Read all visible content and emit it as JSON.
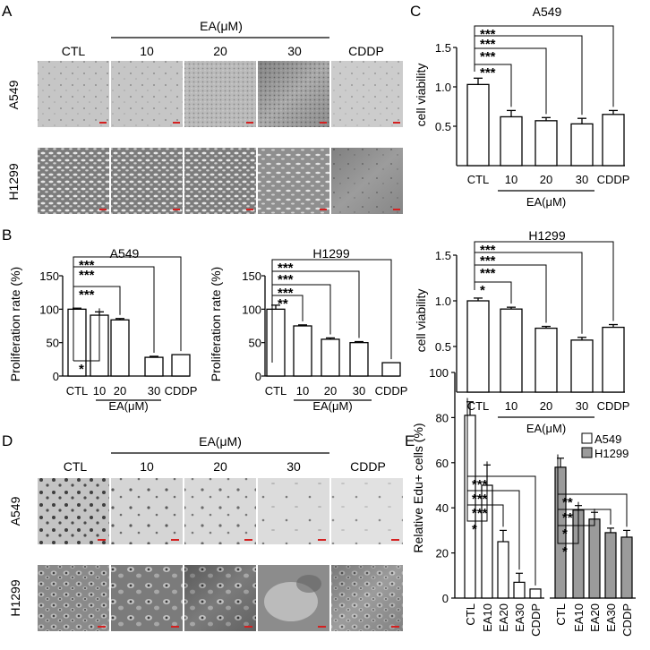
{
  "panels": {
    "a": {
      "letter": "A",
      "treatment_label": "EA(μM)",
      "columns": [
        "CTL",
        "10",
        "20",
        "30",
        "CDDP"
      ],
      "rows": [
        "A549",
        "H1299"
      ]
    },
    "b": {
      "letter": "B"
    },
    "c": {
      "letter": "C"
    },
    "d": {
      "letter": "D",
      "treatment_label": "EA(μM)",
      "columns": [
        "CTL",
        "10",
        "20",
        "30",
        "CDDP"
      ],
      "rows": [
        "A549",
        "H1299"
      ]
    },
    "e": {
      "letter": "E"
    }
  },
  "colors": {
    "bar_open": "#ffffff",
    "bar_h1299": "#9b9b9b",
    "scale_bar": "#d42020"
  },
  "chart_data": [
    {
      "id": "b-a549",
      "panel": "B",
      "type": "bar",
      "title": "A549",
      "ylabel": "Proliferation rate (%)",
      "xlabel": "EA(μM)",
      "categories": [
        "CTL",
        "10",
        "20",
        "30",
        "CDDP"
      ],
      "values": [
        100,
        91,
        84,
        28,
        32
      ],
      "errors": [
        1.5,
        5,
        2,
        1.5,
        0
      ],
      "ylim": [
        0,
        150
      ],
      "yticks": [
        0,
        50,
        100,
        150
      ],
      "significance": [
        "*",
        "***",
        "***",
        "***"
      ]
    },
    {
      "id": "b-h1299",
      "panel": "B",
      "type": "bar",
      "title": "H1299",
      "ylabel": "Proliferation rate (%)",
      "xlabel": "EA(μM)",
      "categories": [
        "CTL",
        "10",
        "20",
        "30",
        "CDDP"
      ],
      "values": [
        100,
        75,
        55,
        50,
        20
      ],
      "errors": [
        6,
        1.5,
        2,
        1.5,
        0
      ],
      "ylim": [
        0,
        150
      ],
      "yticks": [
        0,
        50,
        100,
        150
      ],
      "significance": [
        "**",
        "***",
        "***",
        "***"
      ]
    },
    {
      "id": "c-a549",
      "panel": "C",
      "type": "bar",
      "title": "A549",
      "ylabel": "cell viability",
      "xlabel": "EA(μM)",
      "categories": [
        "CTL",
        "10",
        "20",
        "30",
        "CDDP"
      ],
      "values": [
        1.03,
        0.62,
        0.57,
        0.53,
        0.65
      ],
      "errors": [
        0.08,
        0.08,
        0.04,
        0.07,
        0.05
      ],
      "ylim": [
        0,
        1.5
      ],
      "yticks": [
        "0.5",
        "1.0",
        "1.5"
      ],
      "significance": [
        "***",
        "***",
        "***",
        "***"
      ]
    },
    {
      "id": "c-h1299",
      "panel": "C",
      "type": "bar",
      "title": "H1299",
      "ylabel": "cell viability",
      "xlabel": "EA(μM)",
      "categories": [
        "CTL",
        "10",
        "20",
        "30",
        "CDDP"
      ],
      "values": [
        1.0,
        0.91,
        0.7,
        0.57,
        0.71
      ],
      "errors": [
        0.03,
        0.02,
        0.02,
        0.03,
        0.03
      ],
      "ylim": [
        0,
        1.5
      ],
      "yticks": [
        "0.5",
        "1.0",
        "1.5"
      ],
      "significance": [
        "*",
        "***",
        "***",
        "***"
      ]
    },
    {
      "id": "e-edu",
      "panel": "E",
      "type": "bar",
      "ylabel": "Relative Edu+ cells (%)",
      "categories": [
        "CTL",
        "EA10",
        "EA20",
        "EA30",
        "CDDP"
      ],
      "series": [
        {
          "name": "A549",
          "values": [
            81,
            50,
            25,
            7,
            4
          ],
          "errors": [
            6,
            9,
            5,
            4,
            0
          ],
          "significance": [
            "*",
            "***",
            "***",
            "***"
          ]
        },
        {
          "name": "H1299",
          "values": [
            58,
            39,
            35,
            29,
            27
          ],
          "errors": [
            4,
            2,
            3,
            2,
            3
          ],
          "significance": [
            "*",
            "*",
            "**",
            "**"
          ]
        }
      ],
      "ylim": [
        0,
        100
      ],
      "yticks": [
        0,
        20,
        40,
        60,
        80,
        100
      ],
      "legend": "top-right"
    }
  ]
}
